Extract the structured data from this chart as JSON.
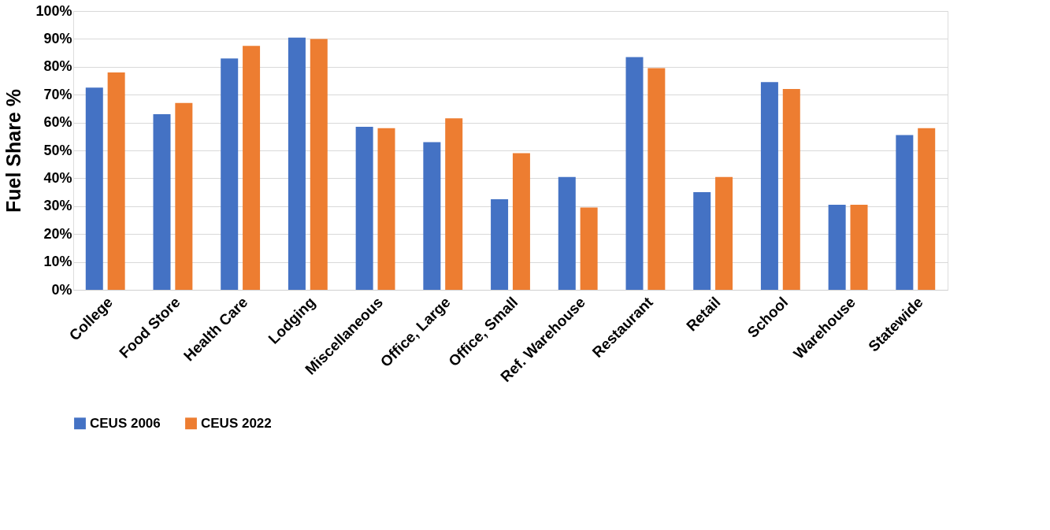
{
  "chart_data": {
    "type": "bar",
    "ylabel": "Fuel Share %",
    "categories": [
      "College",
      "Food Store",
      "Health Care",
      "Lodging",
      "Miscellaneous",
      "Office, Large",
      "Office, Small",
      "Ref. Warehouse",
      "Restaurant",
      "Retail",
      "School",
      "Warehouse",
      "Statewide"
    ],
    "series": [
      {
        "name": "CEUS 2006",
        "color": "#4472c4",
        "values": [
          72.5,
          63,
          83,
          90.5,
          58.5,
          53,
          32.5,
          40.5,
          83.5,
          35,
          74.5,
          30.5,
          55.5
        ]
      },
      {
        "name": "CEUS 2022",
        "color": "#ed7d31",
        "values": [
          78,
          67,
          87.5,
          90,
          58,
          61.5,
          49,
          29.5,
          79.5,
          40.5,
          72,
          30.5,
          58
        ]
      }
    ],
    "ylim": [
      0,
      100
    ],
    "yticks": [
      {
        "value": 0,
        "label": "0%"
      },
      {
        "value": 10,
        "label": "10%"
      },
      {
        "value": 20,
        "label": "20%"
      },
      {
        "value": 30,
        "label": "30%"
      },
      {
        "value": 40,
        "label": "40%"
      },
      {
        "value": 50,
        "label": "50%"
      },
      {
        "value": 60,
        "label": "60%"
      },
      {
        "value": 70,
        "label": "70%"
      },
      {
        "value": 80,
        "label": "80%"
      },
      {
        "value": 90,
        "label": "90%"
      },
      {
        "value": 100,
        "label": "100%"
      }
    ],
    "grid": "y",
    "legend": "bottom"
  }
}
